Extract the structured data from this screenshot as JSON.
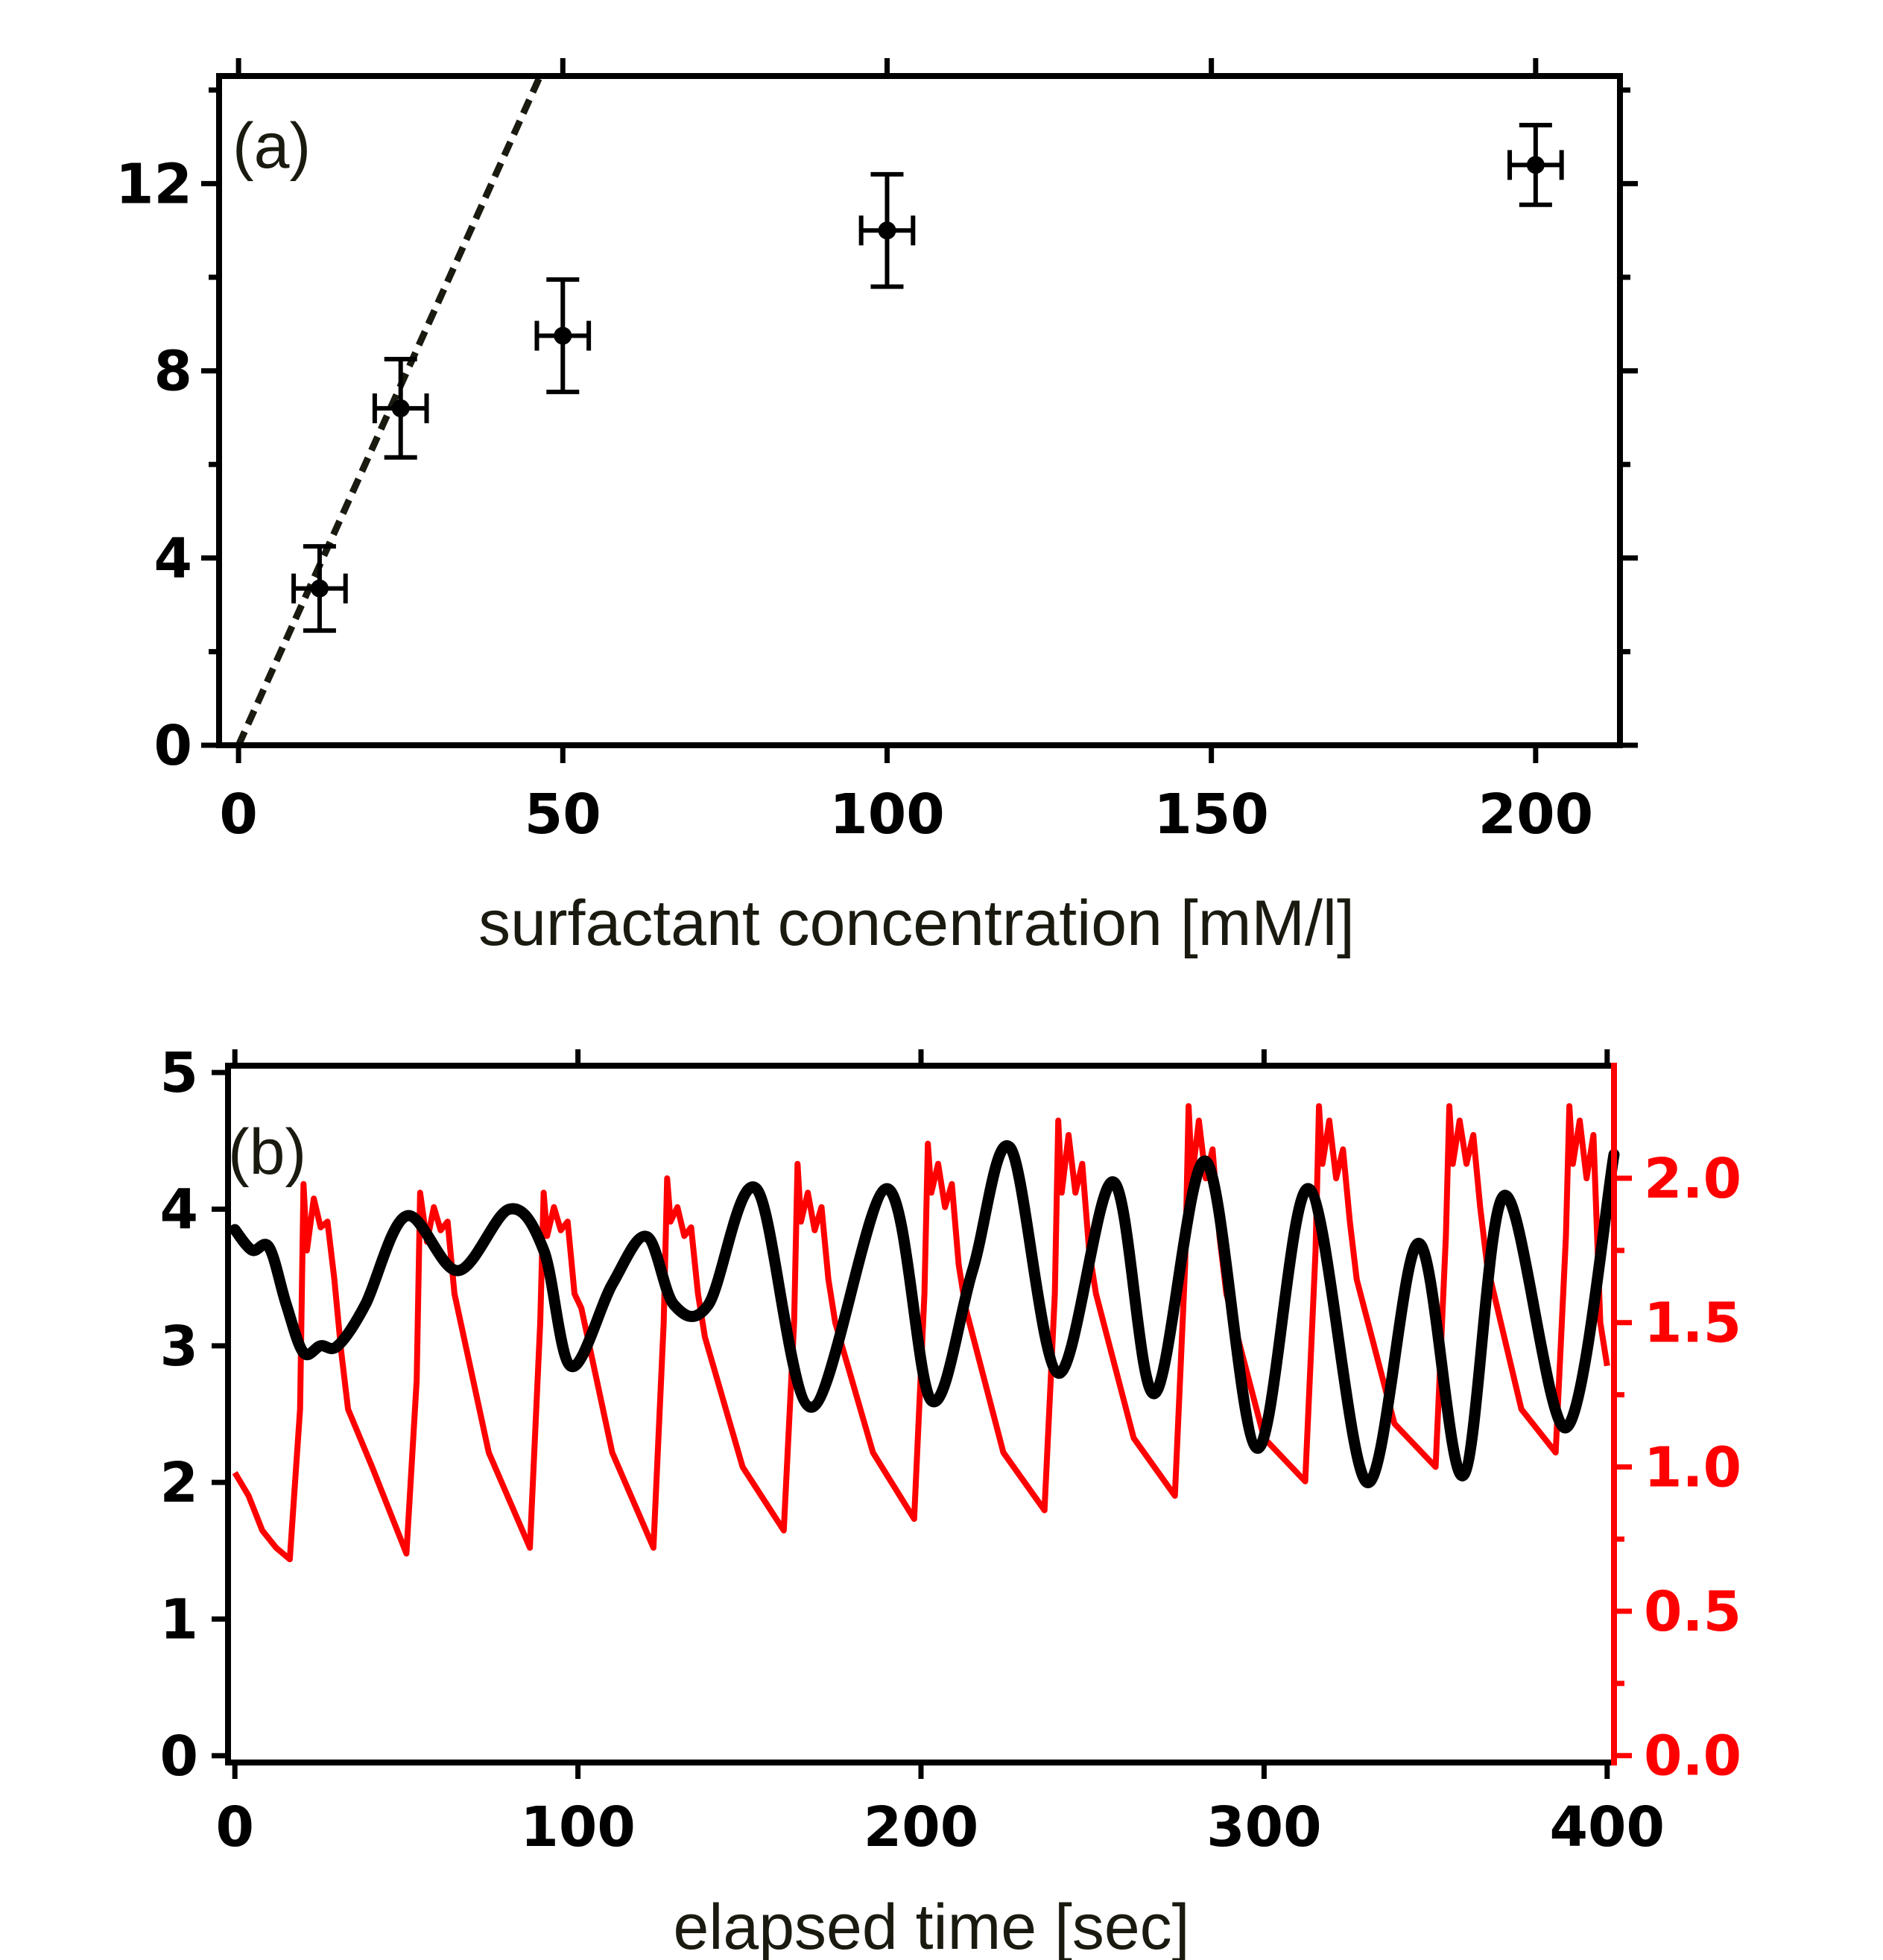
{
  "chart_data": [
    {
      "type": "scatter",
      "panel_label": "(a)",
      "xlabel": "surfactant concentration [mM/l]",
      "ylabel": "",
      "xlim": [
        -3,
        213
      ],
      "ylim": [
        0,
        14.3
      ],
      "xticks": [
        0,
        50,
        100,
        150,
        200
      ],
      "xtick_labels": [
        "0",
        "50",
        "100",
        "150",
        "200"
      ],
      "yticks": [
        0,
        4,
        8,
        12
      ],
      "ytick_labels": [
        "0",
        "4",
        "8",
        "12"
      ],
      "points": [
        {
          "x": 12.5,
          "y": 3.35,
          "xerr": 4.0,
          "yerr": 0.9
        },
        {
          "x": 25,
          "y": 7.2,
          "xerr": 4.0,
          "yerr": 1.05
        },
        {
          "x": 50,
          "y": 8.75,
          "xerr": 4.0,
          "yerr": 1.2
        },
        {
          "x": 100,
          "y": 11.0,
          "xerr": 4.0,
          "yerr": 1.2
        },
        {
          "x": 200,
          "y": 12.4,
          "xerr": 4.0,
          "yerr": 0.85
        }
      ],
      "fit_line": {
        "style": "dashed",
        "x": [
          0,
          46.5
        ],
        "y": [
          0,
          14.3
        ]
      }
    },
    {
      "type": "line",
      "panel_label": "(b)",
      "xlabel": "elapsed time [sec]",
      "ylabel": "",
      "xlim": [
        -2,
        402
      ],
      "ylim": [
        -0.05,
        5.05
      ],
      "y2lim": [
        -0.024,
        2.39
      ],
      "xticks": [
        0,
        100,
        200,
        300,
        400
      ],
      "xtick_labels": [
        "0",
        "100",
        "200",
        "300",
        "400"
      ],
      "yticks": [
        0,
        1,
        2,
        3,
        4,
        5
      ],
      "ytick_labels": [
        "0",
        "1",
        "2",
        "3",
        "4",
        "5"
      ],
      "y2ticks": [
        0,
        0.5,
        1.0,
        1.5,
        2.0
      ],
      "y2tick_labels": [
        "0.0",
        "0.5",
        "1.0",
        "1.5",
        "2.0"
      ],
      "series": [
        {
          "name": "black",
          "color": "#000000",
          "axis": "left",
          "t": [
            0,
            5,
            10,
            15,
            20,
            25,
            30,
            38,
            50,
            65,
            80,
            90,
            98,
            110,
            120,
            128,
            138,
            152,
            168,
            190,
            203,
            215,
            226,
            240,
            256,
            268,
            283,
            298,
            313,
            330,
            345,
            358,
            370,
            388,
            402
          ],
          "y": [
            3.85,
            3.7,
            3.72,
            3.3,
            2.95,
            3.0,
            3.0,
            3.3,
            3.95,
            3.55,
            4.0,
            3.7,
            2.85,
            3.45,
            3.8,
            3.3,
            3.3,
            4.15,
            2.55,
            4.15,
            2.6,
            3.55,
            4.45,
            2.8,
            4.2,
            2.65,
            4.35,
            2.25,
            4.15,
            2.0,
            3.75,
            2.05,
            4.1,
            2.4,
            4.4
          ]
        },
        {
          "name": "red",
          "color": "#ff0000",
          "axis": "right",
          "t": [
            0,
            4,
            8,
            12,
            16,
            19,
            20,
            21,
            23,
            25,
            27,
            29,
            31,
            33,
            40,
            50,
            53,
            54,
            56,
            58,
            60,
            62,
            64,
            74,
            86,
            89,
            90,
            91,
            93,
            95,
            97,
            99,
            101,
            110,
            122,
            125,
            126,
            127,
            129,
            131,
            133,
            135,
            137,
            148,
            160,
            163,
            164,
            165,
            167,
            169,
            171,
            173,
            175,
            186,
            198,
            201,
            202,
            203,
            205,
            207,
            209,
            211,
            213,
            224,
            236,
            239,
            240,
            241,
            243,
            245,
            247,
            249,
            251,
            262,
            274,
            277,
            278,
            279,
            281,
            283,
            285,
            287,
            289,
            300,
            312,
            315,
            316,
            317,
            319,
            321,
            323,
            325,
            327,
            338,
            350,
            353,
            354,
            355,
            357,
            359,
            361,
            363,
            365,
            375,
            385,
            388,
            389,
            390,
            392,
            394,
            396,
            398,
            400
          ],
          "y": [
            0.98,
            0.9,
            0.78,
            0.72,
            0.68,
            1.2,
            1.98,
            1.75,
            1.93,
            1.83,
            1.85,
            1.65,
            1.4,
            1.2,
            1.0,
            0.7,
            1.3,
            1.95,
            1.78,
            1.9,
            1.82,
            1.85,
            1.6,
            1.05,
            0.72,
            1.5,
            1.95,
            1.8,
            1.9,
            1.82,
            1.85,
            1.6,
            1.55,
            1.05,
            0.72,
            1.5,
            2.0,
            1.85,
            1.9,
            1.8,
            1.83,
            1.6,
            1.45,
            1.0,
            0.78,
            1.5,
            2.05,
            1.85,
            1.95,
            1.82,
            1.9,
            1.65,
            1.5,
            1.05,
            0.82,
            1.6,
            2.12,
            1.95,
            2.05,
            1.9,
            1.98,
            1.7,
            1.55,
            1.05,
            0.85,
            1.6,
            2.2,
            1.95,
            2.15,
            1.95,
            2.05,
            1.75,
            1.6,
            1.1,
            0.9,
            1.7,
            2.25,
            2.0,
            2.2,
            2.0,
            2.1,
            1.8,
            1.6,
            1.1,
            0.95,
            1.75,
            2.25,
            2.05,
            2.2,
            2.0,
            2.1,
            1.85,
            1.65,
            1.15,
            1.0,
            1.8,
            2.25,
            2.05,
            2.2,
            2.05,
            2.15,
            1.9,
            1.7,
            1.2,
            1.05,
            1.8,
            2.25,
            2.05,
            2.2,
            2.0,
            2.15,
            1.5,
            1.35
          ]
        }
      ]
    }
  ]
}
